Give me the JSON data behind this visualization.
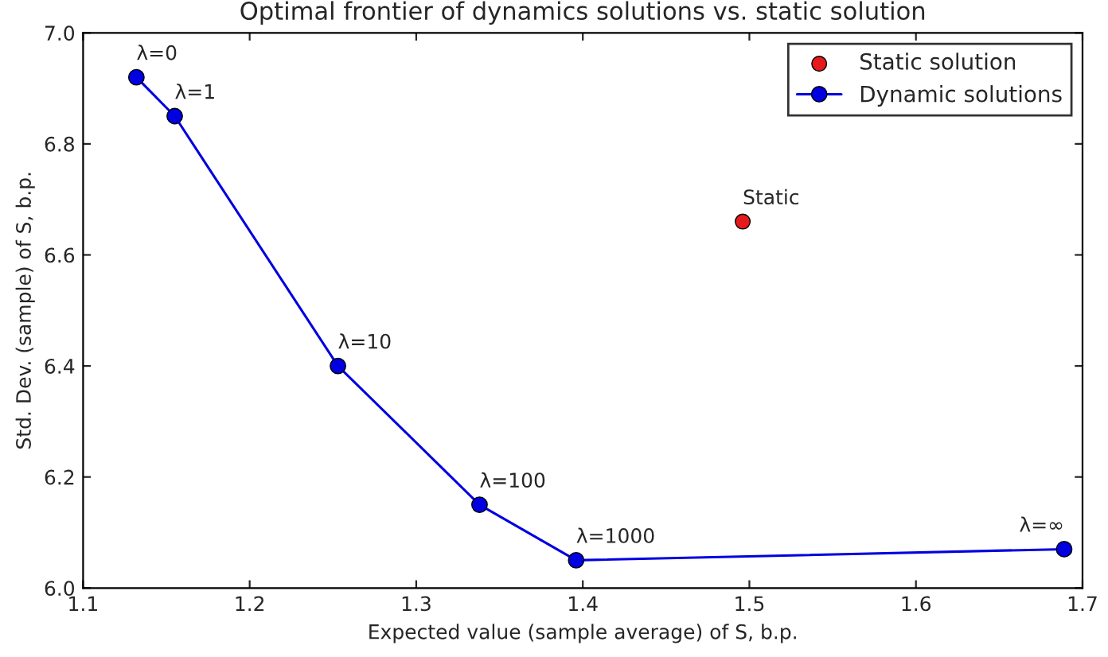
{
  "chart_data": {
    "type": "line",
    "title": "Optimal frontier of dynamics solutions vs. static solution",
    "xlabel": "Expected value (sample average) of S, b.p.",
    "ylabel": "Std. Dev. (sample) of S, b.p.",
    "xlim": [
      1.1,
      1.7
    ],
    "xticks": [
      1.1,
      1.2,
      1.3,
      1.4,
      1.5,
      1.6,
      1.7
    ],
    "ylim": [
      6.0,
      7.0
    ],
    "yticks": [
      {
        "value": 6.0,
        "label": "6.0"
      },
      6.2,
      6.4,
      6.6,
      6.8,
      {
        "value": 7.0,
        "label": "7.0"
      }
    ],
    "grid": false,
    "legend": "top right",
    "marker": "circle",
    "line_style": "solid",
    "series": [
      {
        "name": "Static solution",
        "type": "scatter",
        "color": "#e41a1c",
        "x": [
          1.496
        ],
        "values": [
          6.66
        ]
      },
      {
        "name": "Dynamic solutions",
        "color": "#0000e0",
        "x": [
          1.132,
          1.155,
          1.253,
          1.338,
          1.396,
          1.689
        ],
        "values": [
          6.92,
          6.85,
          6.4,
          6.15,
          6.05,
          6.07
        ]
      }
    ],
    "annotations": [
      {
        "text": "Static",
        "x": 1.496,
        "y": 6.66
      },
      {
        "text": "λ=0",
        "x": 1.132,
        "y": 6.92
      },
      {
        "text": "λ=1",
        "x": 1.155,
        "y": 6.85
      },
      {
        "text": "λ=10",
        "x": 1.253,
        "y": 6.4
      },
      {
        "text": "λ=100",
        "x": 1.338,
        "y": 6.15
      },
      {
        "text": "λ=1000",
        "x": 1.396,
        "y": 6.05
      },
      {
        "text": "λ=∞",
        "x": 1.689,
        "y": 6.07
      }
    ]
  }
}
